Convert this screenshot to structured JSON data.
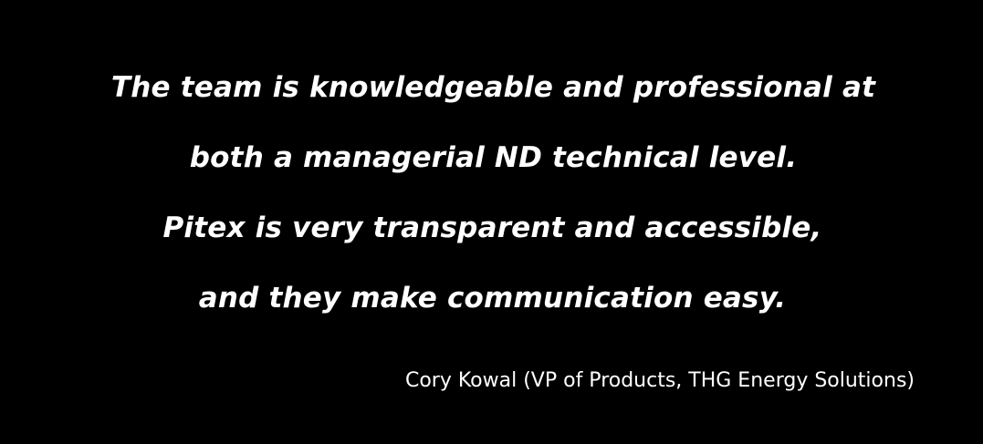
{
  "testimonial": {
    "quote_lines": [
      "The team is knowledgeable and professional at",
      "both a managerial ND technical level.",
      "Pitex is very transparent and accessible,",
      "and they make communication easy."
    ],
    "attribution": "Cory Kowal (VP of Products, THG Energy Solutions)"
  },
  "colors": {
    "background": "#000000",
    "text": "#ffffff"
  }
}
